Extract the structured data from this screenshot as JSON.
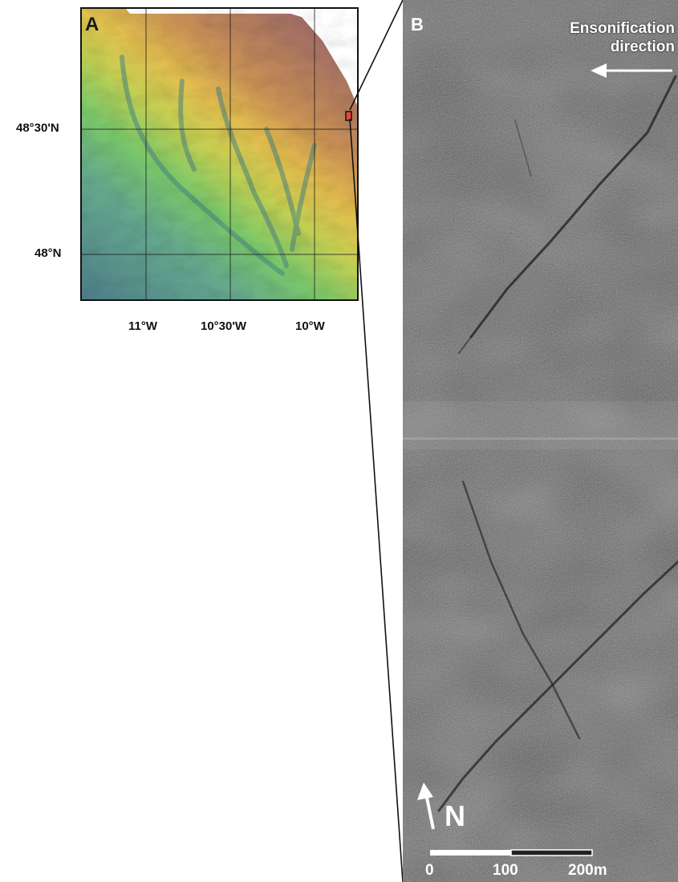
{
  "panel_a": {
    "label": "A",
    "lat_labels": [
      "48°30'N",
      "48°N"
    ],
    "lon_labels": [
      "11°W",
      "10°30'W",
      "10°W"
    ]
  },
  "panel_b": {
    "label": "B",
    "ensonification": [
      "Ensonification",
      "direction"
    ],
    "north_label": "N",
    "scale": [
      "0",
      "100",
      "200m"
    ]
  },
  "colors": {
    "deep": "#5f8a8e",
    "mid": "#6fc06a",
    "shelf": "#e2c04a",
    "top": "#a47468",
    "study_box": "#e8463c"
  }
}
